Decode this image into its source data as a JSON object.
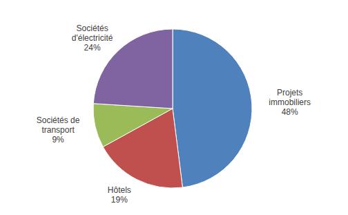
{
  "chart_data": {
    "type": "pie",
    "categories": [
      "Projets immobiliers",
      "Hôtels",
      "Sociétés de transport",
      "Sociétés d'électricité"
    ],
    "values": [
      48,
      19,
      9,
      24
    ],
    "value_labels": [
      "48%",
      "19%",
      "9%",
      "24%"
    ],
    "colors": [
      "#4f81bd",
      "#c0504d",
      "#9bbb59",
      "#8064a2"
    ],
    "data_labels": true
  }
}
